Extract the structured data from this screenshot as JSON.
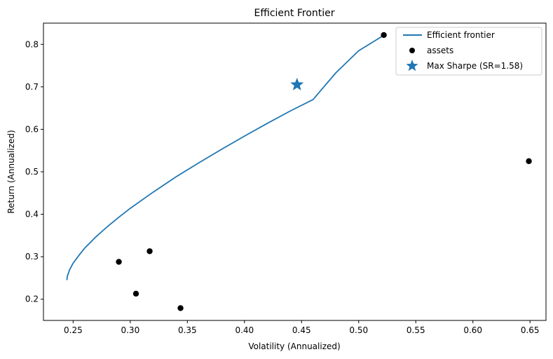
{
  "chart_data": {
    "type": "scatter",
    "title": "Efficient Frontier",
    "xlabel": "Volatility (Annualized)",
    "ylabel": "Return (Annualized)",
    "xlim": [
      0.224,
      0.664
    ],
    "ylim": [
      0.15,
      0.85
    ],
    "xticks": [
      0.25,
      0.3,
      0.35,
      0.4,
      0.45,
      0.5,
      0.55,
      0.6,
      0.65
    ],
    "xtick_labels": [
      "0.25",
      "0.30",
      "0.35",
      "0.40",
      "0.45",
      "0.50",
      "0.55",
      "0.60",
      "0.65"
    ],
    "yticks": [
      0.2,
      0.3,
      0.4,
      0.5,
      0.6,
      0.7,
      0.8
    ],
    "ytick_labels": [
      "0.2",
      "0.3",
      "0.4",
      "0.5",
      "0.6",
      "0.7",
      "0.8"
    ],
    "grid": false,
    "legend_position": "top-right",
    "series": [
      {
        "name": "Efficient frontier",
        "kind": "line",
        "color": "#1f77b4",
        "points": [
          [
            0.2445,
            0.245
          ],
          [
            0.245,
            0.255
          ],
          [
            0.247,
            0.27
          ],
          [
            0.25,
            0.285
          ],
          [
            0.255,
            0.303
          ],
          [
            0.26,
            0.32
          ],
          [
            0.27,
            0.347
          ],
          [
            0.28,
            0.371
          ],
          [
            0.29,
            0.393
          ],
          [
            0.3,
            0.414
          ],
          [
            0.32,
            0.452
          ],
          [
            0.34,
            0.488
          ],
          [
            0.36,
            0.521
          ],
          [
            0.38,
            0.553
          ],
          [
            0.4,
            0.584
          ],
          [
            0.42,
            0.614
          ],
          [
            0.446,
            0.705
          ],
          [
            0.44,
            0.643
          ],
          [
            0.46,
            0.67
          ],
          [
            0.48,
            0.733
          ],
          [
            0.5,
            0.785
          ],
          [
            0.5223,
            0.822
          ]
        ]
      },
      {
        "name": "assets",
        "kind": "scatter",
        "color": "#000000",
        "points": [
          [
            0.29,
            0.288
          ],
          [
            0.305,
            0.213
          ],
          [
            0.317,
            0.313
          ],
          [
            0.344,
            0.179
          ],
          [
            0.522,
            0.822
          ],
          [
            0.649,
            0.525
          ]
        ]
      },
      {
        "name": "Max Sharpe (SR=1.58)",
        "kind": "star",
        "color": "#1f77b4",
        "points": [
          [
            0.446,
            0.705
          ]
        ]
      }
    ]
  }
}
